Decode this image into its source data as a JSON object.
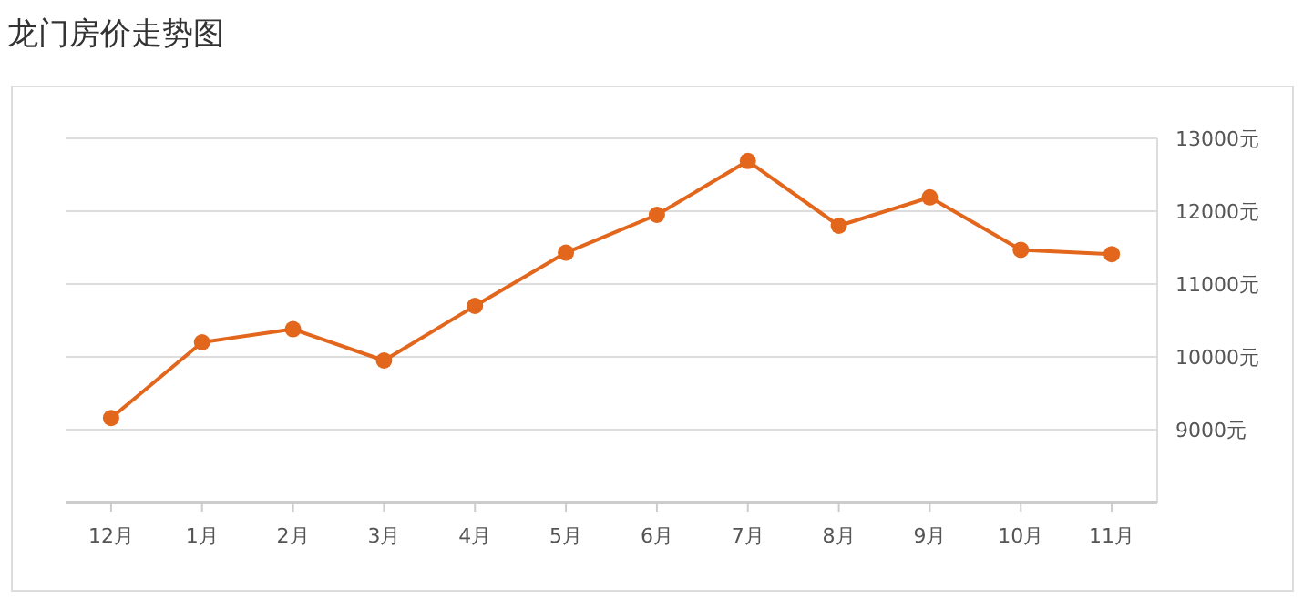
{
  "chart_data": {
    "type": "line",
    "title": "龙门房价走势图",
    "categories": [
      "12月",
      "1月",
      "2月",
      "3月",
      "4月",
      "5月",
      "6月",
      "7月",
      "8月",
      "9月",
      "10月",
      "11月"
    ],
    "series": [
      {
        "color": "#e2661c",
        "values": [
          9160,
          10200,
          10380,
          9950,
          10700,
          11430,
          11950,
          12690,
          11800,
          12190,
          11470,
          11410
        ]
      }
    ],
    "ylim": [
      8000,
      13000
    ],
    "yticks": [
      {
        "value": 9000,
        "label": "9000元"
      },
      {
        "value": 10000,
        "label": "10000元"
      },
      {
        "value": 11000,
        "label": "11000元"
      },
      {
        "value": 12000,
        "label": "12000元"
      },
      {
        "value": 13000,
        "label": "13000元"
      }
    ],
    "grid": "y",
    "marker": "circle",
    "line_style": "solid"
  }
}
